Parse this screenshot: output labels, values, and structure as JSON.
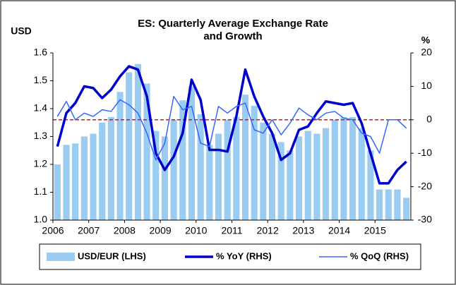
{
  "chart_data": {
    "type": "combo",
    "title": [
      "ES: Quarterly Average Exchange Rate",
      "and Growth"
    ],
    "y_label": "USD",
    "y2_label": "%",
    "categories": [
      "2006",
      null,
      null,
      null,
      "2007",
      null,
      null,
      null,
      "2008",
      null,
      null,
      null,
      "2009",
      null,
      null,
      null,
      "2010",
      null,
      null,
      null,
      "2011",
      null,
      null,
      null,
      "2012",
      null,
      null,
      null,
      "2013",
      null,
      null,
      null,
      "2014",
      null,
      null,
      null,
      "2015",
      null,
      null,
      null
    ],
    "ylim": [
      1.0,
      1.6
    ],
    "yticks": [
      {
        "value": 1.0,
        "label": "1.0"
      },
      1.1,
      1.2,
      1.3,
      1.4,
      1.5,
      1.6
    ],
    "y2lim": [
      -30,
      20
    ],
    "y2ticks": [
      -30,
      -20,
      -10,
      0,
      10,
      20
    ],
    "grid": false,
    "legend": "bottom",
    "reference_line": {
      "value": 0,
      "color": "#ff0000",
      "axis": "y2"
    },
    "series": [
      {
        "name": "USD/EUR (LHS)",
        "type": "bar",
        "color": "#99ccf0",
        "values": [
          1.2,
          1.27,
          1.275,
          1.3,
          1.31,
          1.35,
          1.37,
          1.46,
          1.53,
          1.56,
          1.49,
          1.32,
          1.3,
          1.36,
          1.43,
          1.48,
          1.38,
          1.27,
          1.31,
          1.36,
          1.37,
          1.45,
          1.41,
          1.35,
          1.31,
          1.28,
          1.25,
          1.3,
          1.32,
          1.31,
          1.33,
          1.36,
          1.37,
          1.37,
          1.33,
          1.25,
          1.11,
          1.11,
          1.11,
          1.08
        ]
      },
      {
        "name": "% YoY (RHS)",
        "type": "line",
        "axis": "y2",
        "color": "#0000cc",
        "width": 3.5,
        "values": [
          -8,
          2,
          5,
          10,
          9.5,
          6.5,
          9,
          13,
          16,
          15,
          7,
          -10,
          -15,
          -11,
          -4,
          12,
          6,
          -9,
          -9,
          -9.5,
          1,
          15,
          7,
          1,
          -4,
          -12,
          -10,
          -3,
          -2,
          2,
          5.5,
          5,
          4.5,
          5,
          -1,
          -10,
          -19,
          -19,
          -15,
          -12.5
        ]
      },
      {
        "name": "% QoQ (RHS)",
        "type": "line",
        "axis": "y2",
        "color": "#3366ff",
        "width": 1.5,
        "values": [
          1,
          5.5,
          0,
          2,
          1,
          3,
          2.5,
          6,
          4.5,
          2,
          -4,
          -12,
          -7,
          7,
          3,
          4,
          -7,
          -8,
          4,
          2,
          4,
          5,
          -3,
          -4,
          0,
          -4.5,
          -1,
          3.5,
          1.5,
          0,
          2,
          2.5,
          0.5,
          0,
          -4,
          -5,
          -10,
          0,
          0,
          -2.5
        ]
      }
    ]
  }
}
